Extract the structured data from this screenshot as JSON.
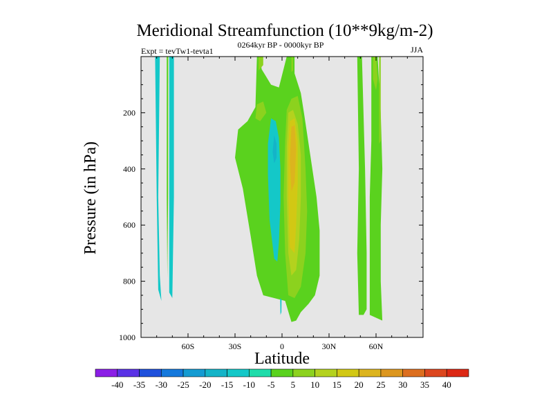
{
  "chart_data": {
    "type": "contour",
    "title": "Meridional Streamfunction (10**9kg/m-2)",
    "left_label": "Expt = tevTw1-tevta1",
    "center_label": "0264kyr BP - 0000kyr BP",
    "right_label": "JJA",
    "xlabel": "Latitude",
    "ylabel": "Pressure (in hPa)",
    "xlim": [
      -90,
      90
    ],
    "ylim": [
      1000,
      0
    ],
    "x_ticks": [
      {
        "value": -60,
        "label": "60S"
      },
      {
        "value": -30,
        "label": "30S"
      },
      {
        "value": 0,
        "label": "0"
      },
      {
        "value": 30,
        "label": "30N"
      },
      {
        "value": 60,
        "label": "60N"
      }
    ],
    "y_ticks": [
      {
        "value": 200,
        "label": "200"
      },
      {
        "value": 400,
        "label": "400"
      },
      {
        "value": 600,
        "label": "600"
      },
      {
        "value": 800,
        "label": "800"
      },
      {
        "value": 1000,
        "label": "1000"
      }
    ],
    "background_color": "#e6e6e6",
    "colorbar": {
      "labels": [
        "-40",
        "-35",
        "-30",
        "-25",
        "-20",
        "-15",
        "-10",
        "-5",
        "5",
        "10",
        "15",
        "20",
        "25",
        "30",
        "35",
        "40"
      ],
      "colors": [
        "#8b1ee6",
        "#5a32e6",
        "#1e50dc",
        "#1478dc",
        "#149bd2",
        "#14b4c8",
        "#14c8c8",
        "#1edcaa",
        "#5ad21e",
        "#8cd21e",
        "#b4d21e",
        "#d2c814",
        "#dcb41e",
        "#dc961e",
        "#dc6e1e",
        "#dc461e",
        "#dc2814"
      ]
    },
    "contour_regions": [
      {
        "name": "sh-high-lat-band-1-negative",
        "level": "-5..-10",
        "color": "#14c8c8",
        "points": [
          [
            -81,
            0
          ],
          [
            -78,
            0
          ],
          [
            -79,
            500
          ],
          [
            -78,
            780
          ],
          [
            -77,
            870
          ],
          [
            -79,
            830
          ],
          [
            -80,
            500
          ]
        ]
      },
      {
        "name": "sh-high-lat-band-2-negative",
        "level": "-5..-10",
        "color": "#14c8c8",
        "points": [
          [
            -72,
            0
          ],
          [
            -69,
            0
          ],
          [
            -69,
            500
          ],
          [
            -70,
            860
          ],
          [
            -72,
            840
          ],
          [
            -72,
            500
          ]
        ]
      },
      {
        "name": "sh-thin-positive-strip",
        "level": "5..10",
        "color": "#5ad21e",
        "points": [
          [
            -73.6,
            0
          ],
          [
            -72.6,
            0
          ],
          [
            -72.7,
            500
          ],
          [
            -73.2,
            790
          ],
          [
            -73.6,
            500
          ]
        ]
      },
      {
        "name": "main-positive-cell",
        "level": "5..10",
        "color": "#5ad21e",
        "points": [
          [
            -16,
            0
          ],
          [
            -14,
            0
          ],
          [
            -13,
            45
          ],
          [
            -7,
            100
          ],
          [
            -2,
            110
          ],
          [
            3,
            0
          ],
          [
            8,
            0
          ],
          [
            8,
            60
          ],
          [
            12,
            130
          ],
          [
            14,
            200
          ],
          [
            18,
            350
          ],
          [
            22,
            500
          ],
          [
            24,
            620
          ],
          [
            24,
            780
          ],
          [
            21,
            850
          ],
          [
            17,
            880
          ],
          [
            12,
            910
          ],
          [
            9,
            940
          ],
          [
            6,
            945
          ],
          [
            2,
            870
          ],
          [
            -5,
            860
          ],
          [
            -12,
            850
          ],
          [
            -16,
            780
          ],
          [
            -20,
            640
          ],
          [
            -25,
            470
          ],
          [
            -30,
            360
          ],
          [
            -28,
            260
          ],
          [
            -22,
            230
          ],
          [
            -17,
            180
          ]
        ]
      },
      {
        "name": "sh-subtropical-negative-cell",
        "level": "-5..-10",
        "color": "#14c8c8",
        "points": [
          [
            -7,
            220
          ],
          [
            -4,
            230
          ],
          [
            -2,
            290
          ],
          [
            -1,
            400
          ],
          [
            -1,
            520
          ],
          [
            -2,
            660
          ],
          [
            -3,
            730
          ],
          [
            -5,
            720
          ],
          [
            -8,
            580
          ],
          [
            -9,
            420
          ],
          [
            -9,
            310
          ]
        ]
      },
      {
        "name": "sh-subtropical-negative-core",
        "level": "-10..-15",
        "color": "#14b4c8",
        "points": [
          [
            -5,
            280
          ],
          [
            -3.5,
            310
          ],
          [
            -3.5,
            360
          ],
          [
            -5,
            380
          ],
          [
            -6,
            340
          ]
        ]
      },
      {
        "name": "small-negative-patch",
        "level": "-5..-10",
        "color": "#14c8c8",
        "points": [
          [
            -1.2,
            860
          ],
          [
            -0.3,
            865
          ],
          [
            -0.4,
            910
          ],
          [
            -1,
            920
          ]
        ]
      },
      {
        "name": "upper-branch-yellow-1",
        "level": "10..15",
        "color": "#8cd21e",
        "points": [
          [
            -15,
            0
          ],
          [
            -12,
            0
          ],
          [
            -12,
            30
          ],
          [
            -15,
            50
          ]
        ]
      },
      {
        "name": "upper-branch-yellow-2",
        "level": "10..15",
        "color": "#8cd21e",
        "points": [
          [
            -16,
            170
          ],
          [
            -12,
            160
          ],
          [
            -10,
            200
          ],
          [
            -14,
            230
          ],
          [
            -17,
            220
          ]
        ]
      },
      {
        "name": "upper-branch-yellow-3",
        "level": "10..15",
        "color": "#8cd21e",
        "points": [
          [
            6,
            0
          ],
          [
            7,
            0
          ],
          [
            7,
            50
          ],
          [
            6,
            55
          ]
        ]
      },
      {
        "name": "ascending-column-level-10",
        "level": "10..15",
        "color": "#8cd21e",
        "points": [
          [
            3,
            190
          ],
          [
            6,
            150
          ],
          [
            10,
            140
          ],
          [
            13,
            220
          ],
          [
            15,
            400
          ],
          [
            16,
            550
          ],
          [
            15,
            700
          ],
          [
            12,
            820
          ],
          [
            8,
            860
          ],
          [
            4,
            850
          ],
          [
            2,
            700
          ],
          [
            1,
            500
          ],
          [
            2,
            300
          ]
        ]
      },
      {
        "name": "ascending-column-level-15",
        "level": "15..20",
        "color": "#b4d21e",
        "points": [
          [
            4,
            200
          ],
          [
            7,
            190
          ],
          [
            10,
            240
          ],
          [
            12,
            350
          ],
          [
            12,
            500
          ],
          [
            11,
            650
          ],
          [
            9,
            760
          ],
          [
            6,
            780
          ],
          [
            4,
            700
          ],
          [
            3,
            500
          ],
          [
            3,
            320
          ]
        ]
      },
      {
        "name": "ascending-column-level-20",
        "level": "20..25",
        "color": "#d2c814",
        "points": [
          [
            5,
            230
          ],
          [
            8,
            220
          ],
          [
            10,
            300
          ],
          [
            10,
            450
          ],
          [
            9,
            600
          ],
          [
            8,
            700
          ],
          [
            5,
            680
          ],
          [
            4,
            500
          ],
          [
            4,
            320
          ]
        ]
      },
      {
        "name": "ascending-column-level-25",
        "level": "25..30",
        "color": "#dcb41e",
        "points": [
          [
            6,
            250
          ],
          [
            8,
            245
          ],
          [
            9,
            330
          ],
          [
            8,
            450
          ],
          [
            6,
            480
          ],
          [
            5,
            370
          ]
        ]
      },
      {
        "name": "nh-high-lat-band-1-positive",
        "level": "5..10",
        "color": "#5ad21e",
        "points": [
          [
            48,
            0
          ],
          [
            51,
            0
          ],
          [
            53,
            400
          ],
          [
            54,
            700
          ],
          [
            54,
            900
          ],
          [
            52,
            920
          ],
          [
            49,
            920
          ],
          [
            48,
            700
          ],
          [
            49,
            400
          ]
        ]
      },
      {
        "name": "nh-high-lat-band-2-positive",
        "level": "5..10",
        "color": "#5ad21e",
        "points": [
          [
            57,
            0
          ],
          [
            61,
            0
          ],
          [
            63,
            200
          ],
          [
            64,
            400
          ],
          [
            63,
            600
          ],
          [
            63,
            800
          ],
          [
            64,
            940
          ],
          [
            60,
            930
          ],
          [
            56,
            920
          ],
          [
            56,
            800
          ],
          [
            56,
            500
          ],
          [
            57,
            300
          ]
        ]
      },
      {
        "name": "nh-high-lat-band-2-yellow",
        "level": "10..15",
        "color": "#8cd21e",
        "points": [
          [
            58,
            0
          ],
          [
            60,
            0
          ],
          [
            61,
            80
          ],
          [
            60,
            120
          ],
          [
            58,
            80
          ]
        ]
      },
      {
        "name": "nh-high-lat-band-2-yellow-2",
        "level": "10..15",
        "color": "#8cd21e",
        "points": [
          [
            62,
            0
          ],
          [
            63,
            0
          ],
          [
            63,
            300
          ],
          [
            62,
            310
          ]
        ]
      }
    ]
  }
}
